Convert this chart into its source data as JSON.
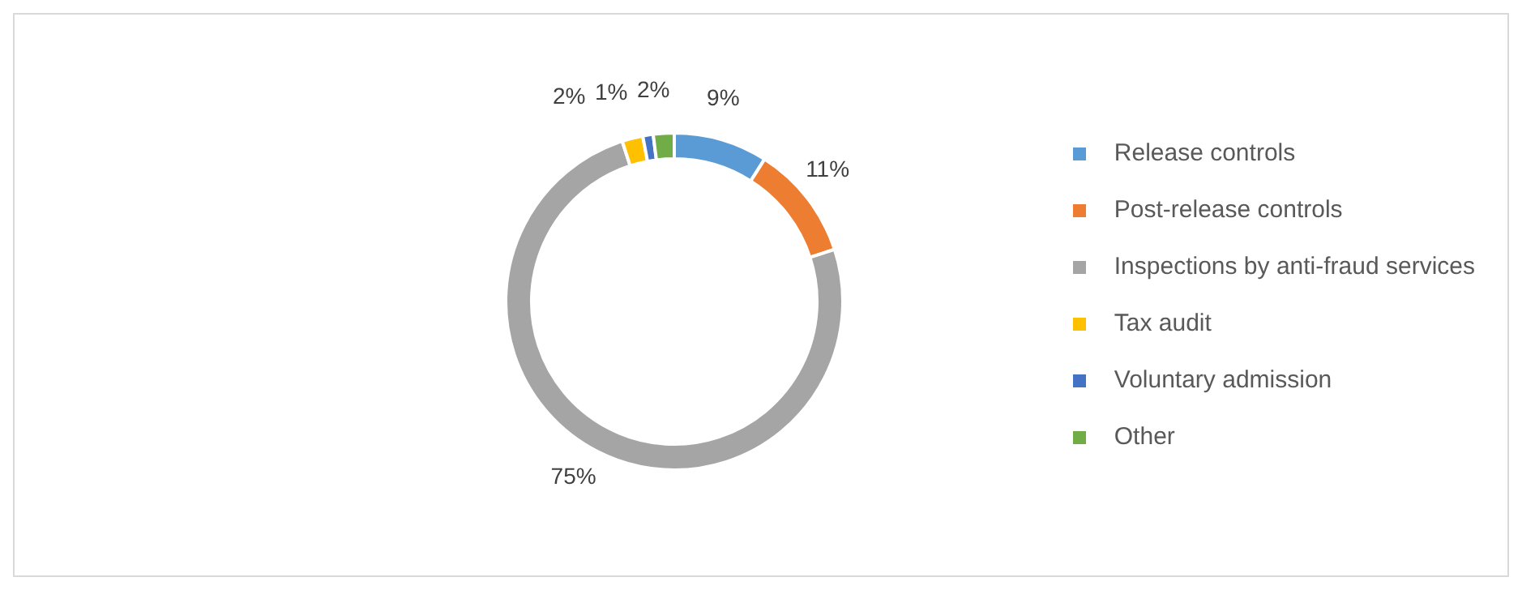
{
  "chart_data": {
    "type": "donut",
    "categories": [
      "Release controls",
      "Post-release controls",
      "Inspections by anti-fraud services",
      "Tax audit",
      "Voluntary admission",
      "Other"
    ],
    "values": [
      9,
      11,
      75,
      2,
      1,
      2
    ],
    "value_labels": [
      "9%",
      "11%",
      "75%",
      "2%",
      "1%",
      "2%"
    ],
    "colors": [
      "#5b9bd5",
      "#ed7d31",
      "#a5a5a5",
      "#ffc000",
      "#4472c4",
      "#70ad47"
    ],
    "legend": "right"
  }
}
